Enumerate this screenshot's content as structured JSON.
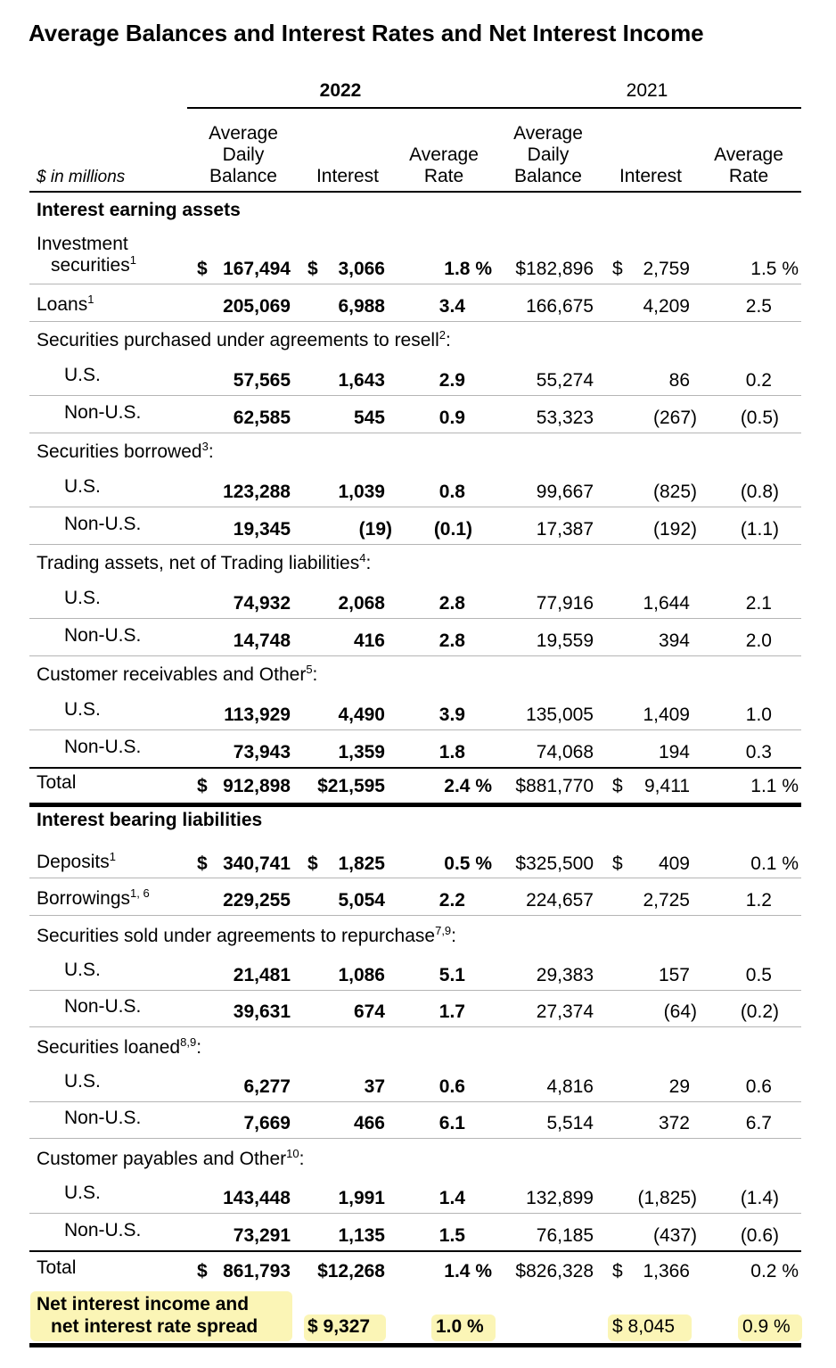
{
  "title": "Average Balances and Interest Rates and Net Interest Income",
  "years": [
    "2022",
    "2021"
  ],
  "unit": "$ in millions",
  "col_headers": {
    "avg_balance": [
      "Average",
      "Daily",
      "Balance"
    ],
    "interest": "Interest",
    "avg_rate": [
      "Average",
      "Rate"
    ]
  },
  "sections": {
    "assets": "Interest earning assets",
    "liabilities": "Interest bearing liabilities"
  },
  "rows": [
    {
      "label": "Investment",
      "label2": "securities",
      "sup": "1",
      "v": [
        "$ 167,494",
        "$ 3,066",
        "1.8 %",
        "$182,896",
        "$ 2,759",
        "1.5 %"
      ]
    },
    {
      "label": "Loans",
      "sup": "1",
      "v": [
        "205,069",
        "6,988",
        "3.4",
        "166,675",
        "4,209",
        "2.5"
      ]
    },
    {
      "group": "Securities purchased under agreements to resell",
      "sup": "2"
    },
    {
      "label": "U.S.",
      "v": [
        "57,565",
        "1,643",
        "2.9",
        "55,274",
        "86",
        "0.2"
      ]
    },
    {
      "label": "Non-U.S.",
      "v": [
        "62,585",
        "545",
        "0.9",
        "53,323",
        "(267)",
        "(0.5)"
      ]
    },
    {
      "group": "Securities borrowed",
      "sup": "3"
    },
    {
      "label": "U.S.",
      "v": [
        "123,288",
        "1,039",
        "0.8",
        "99,667",
        "(825)",
        "(0.8)"
      ]
    },
    {
      "label": "Non-U.S.",
      "v": [
        "19,345",
        "(19)",
        "(0.1)",
        "17,387",
        "(192)",
        "(1.1)"
      ]
    },
    {
      "group": "Trading assets, net of Trading liabilities",
      "sup": "4"
    },
    {
      "label": "U.S.",
      "v": [
        "74,932",
        "2,068",
        "2.8",
        "77,916",
        "1,644",
        "2.1"
      ]
    },
    {
      "label": "Non-U.S.",
      "v": [
        "14,748",
        "416",
        "2.8",
        "19,559",
        "394",
        "2.0"
      ]
    },
    {
      "group": "Customer receivables and Other",
      "sup": "5"
    },
    {
      "label": "U.S.",
      "v": [
        "113,929",
        "4,490",
        "3.9",
        "135,005",
        "1,409",
        "1.0"
      ]
    },
    {
      "label": "Non-U.S.",
      "v": [
        "73,943",
        "1,359",
        "1.8",
        "74,068",
        "194",
        "0.3"
      ]
    },
    {
      "label": "Total",
      "v": [
        "$ 912,898",
        "$21,595",
        "2.4 %",
        "$881,770",
        "$ 9,411",
        "1.1 %"
      ]
    },
    {
      "label": "Deposits",
      "sup": "1",
      "v": [
        "$ 340,741",
        "$ 1,825",
        "0.5 %",
        "$325,500",
        "$ 409",
        "0.1 %"
      ]
    },
    {
      "label": "Borrowings",
      "sup": "1, 6",
      "v": [
        "229,255",
        "5,054",
        "2.2",
        "224,657",
        "2,725",
        "1.2"
      ]
    },
    {
      "group": "Securities sold under agreements to repurchase",
      "sup": "7,9"
    },
    {
      "label": "U.S.",
      "v": [
        "21,481",
        "1,086",
        "5.1",
        "29,383",
        "157",
        "0.5"
      ]
    },
    {
      "label": "Non-U.S.",
      "v": [
        "39,631",
        "674",
        "1.7",
        "27,374",
        "(64)",
        "(0.2)"
      ]
    },
    {
      "group": "Securities loaned",
      "sup": "8,9"
    },
    {
      "label": "U.S.",
      "v": [
        "6,277",
        "37",
        "0.6",
        "4,816",
        "29",
        "0.6"
      ]
    },
    {
      "label": "Non-U.S.",
      "v": [
        "7,669",
        "466",
        "6.1",
        "5,514",
        "372",
        "6.7"
      ]
    },
    {
      "group": "Customer payables and Other",
      "sup": "10"
    },
    {
      "label": "U.S.",
      "v": [
        "143,448",
        "1,991",
        "1.4",
        "132,899",
        "(1,825)",
        "(1.4)"
      ]
    },
    {
      "label": "Non-U.S.",
      "v": [
        "73,291",
        "1,135",
        "1.5",
        "76,185",
        "(437)",
        "(0.6)"
      ]
    },
    {
      "label": "Total",
      "v": [
        "$ 861,793",
        "$12,268",
        "1.4 %",
        "$826,328",
        "$ 1,366",
        "0.2 %"
      ]
    }
  ],
  "net": {
    "label1": "Net interest income and",
    "label2": "net interest rate spread",
    "interest_2022": "$ 9,327",
    "spread_2022": "1.0 %",
    "interest_2021": "$ 8,045",
    "spread_2021": "0.9 %"
  },
  "highlight_color": "#fbf5b6"
}
